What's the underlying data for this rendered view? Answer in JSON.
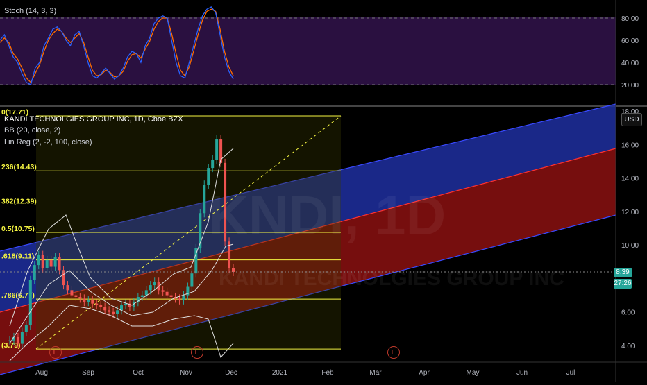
{
  "oscillator": {
    "title": "Stoch (14, 3, 3)",
    "levels": [
      {
        "value": 80,
        "label": "80.00"
      },
      {
        "value": 60,
        "label": "60.00"
      },
      {
        "value": 40,
        "label": "40.00"
      },
      {
        "value": 20,
        "label": "20.00"
      }
    ]
  },
  "main": {
    "title": "KANDI TECHNOLGIES GROUP INC, 1D, Cboe BZX",
    "indicators": [
      "BB (20, close, 2)",
      "Lin Reg (2, -2, 100, close)"
    ],
    "watermark_ticker": "KNDI, 1D",
    "watermark_name": "KANDI TECHNOLGIES GROUP INC",
    "usd_label": "USD"
  },
  "fib_levels": [
    {
      "label": "0(17.71)",
      "price": 17.71
    },
    {
      "label": "236(14.43)",
      "price": 14.43
    },
    {
      "label": "382(12.39)",
      "price": 12.39
    },
    {
      "label": "0.5(10.75)",
      "price": 10.75
    },
    {
      "label": ".618(9.11)",
      "price": 9.11
    },
    {
      "label": ".786(6.77)",
      "price": 6.77
    },
    {
      "label": "(3.79)",
      "price": 3.79
    }
  ],
  "price_axis": [
    {
      "value": 18,
      "label": "18.00"
    },
    {
      "value": 16,
      "label": "16.00"
    },
    {
      "value": 14,
      "label": "14.00"
    },
    {
      "value": 12,
      "label": "12.00"
    },
    {
      "value": 10,
      "label": "10.00"
    },
    {
      "value": 6,
      "label": "6.00"
    },
    {
      "value": 4,
      "label": "4.00"
    }
  ],
  "current_price": {
    "value": 8.39,
    "label": "8.39",
    "countdown": "27:26",
    "color": "#26a69a"
  },
  "time_axis": [
    "Aug",
    "Sep",
    "Oct",
    "Nov",
    "Dec",
    "2021",
    "Feb",
    "Mar",
    "Apr",
    "May",
    "Jun",
    "Jul"
  ],
  "earnings_markers": [
    {
      "label": "E"
    },
    {
      "label": "E"
    },
    {
      "label": "E"
    }
  ],
  "colors": {
    "osc_bg": "#2a1040",
    "k_line": "#2962ff",
    "d_line": "#ff6d00",
    "fib_line": "#f5f542",
    "fib_bg": "#1f1f00",
    "channel_upper": "#1e2fa0",
    "channel_lower": "#8b1010",
    "bull": "#26a69a",
    "bear": "#ef5350"
  },
  "chart_data": {
    "type": "candlestick",
    "symbol": "KANDI TECHNOLGIES GROUP INC",
    "ylim": [
      3,
      18
    ],
    "close_series": [
      4.3,
      4.5,
      4.1,
      4.8,
      5.2,
      7.9,
      8.8,
      9.4,
      8.6,
      9.1,
      8.7,
      9.3,
      8.5,
      7.6,
      7.3,
      7.0,
      6.9,
      6.8,
      6.6,
      6.7,
      6.5,
      6.4,
      6.3,
      6.1,
      6.0,
      5.9,
      6.1,
      6.4,
      6.5,
      6.3,
      6.6,
      6.9,
      7.0,
      7.3,
      7.6,
      7.8,
      7.3,
      7.2,
      7.0,
      6.9,
      6.8,
      6.7,
      7.0,
      7.5,
      8.3,
      9.8,
      11.9,
      13.6,
      14.6,
      15.1,
      16.3,
      14.9,
      10.2,
      8.6,
      8.39
    ],
    "stoch_k": [
      60,
      65,
      55,
      45,
      40,
      30,
      22,
      20,
      35,
      40,
      55,
      62,
      70,
      72,
      68,
      60,
      55,
      65,
      68,
      55,
      40,
      28,
      26,
      30,
      35,
      30,
      25,
      28,
      35,
      45,
      50,
      48,
      40,
      55,
      62,
      75,
      80,
      82,
      80,
      60,
      40,
      28,
      26,
      40,
      55,
      70,
      82,
      88,
      90,
      85,
      65,
      45,
      32,
      25
    ],
    "stoch_d": [
      58,
      62,
      58,
      48,
      43,
      35,
      26,
      22,
      30,
      38,
      50,
      60,
      66,
      70,
      68,
      62,
      58,
      62,
      66,
      58,
      45,
      33,
      28,
      29,
      33,
      31,
      27,
      28,
      32,
      41,
      47,
      48,
      44,
      52,
      59,
      70,
      77,
      80,
      80,
      66,
      48,
      33,
      28,
      36,
      50,
      65,
      78,
      86,
      88,
      86,
      70,
      50,
      36,
      28
    ]
  }
}
